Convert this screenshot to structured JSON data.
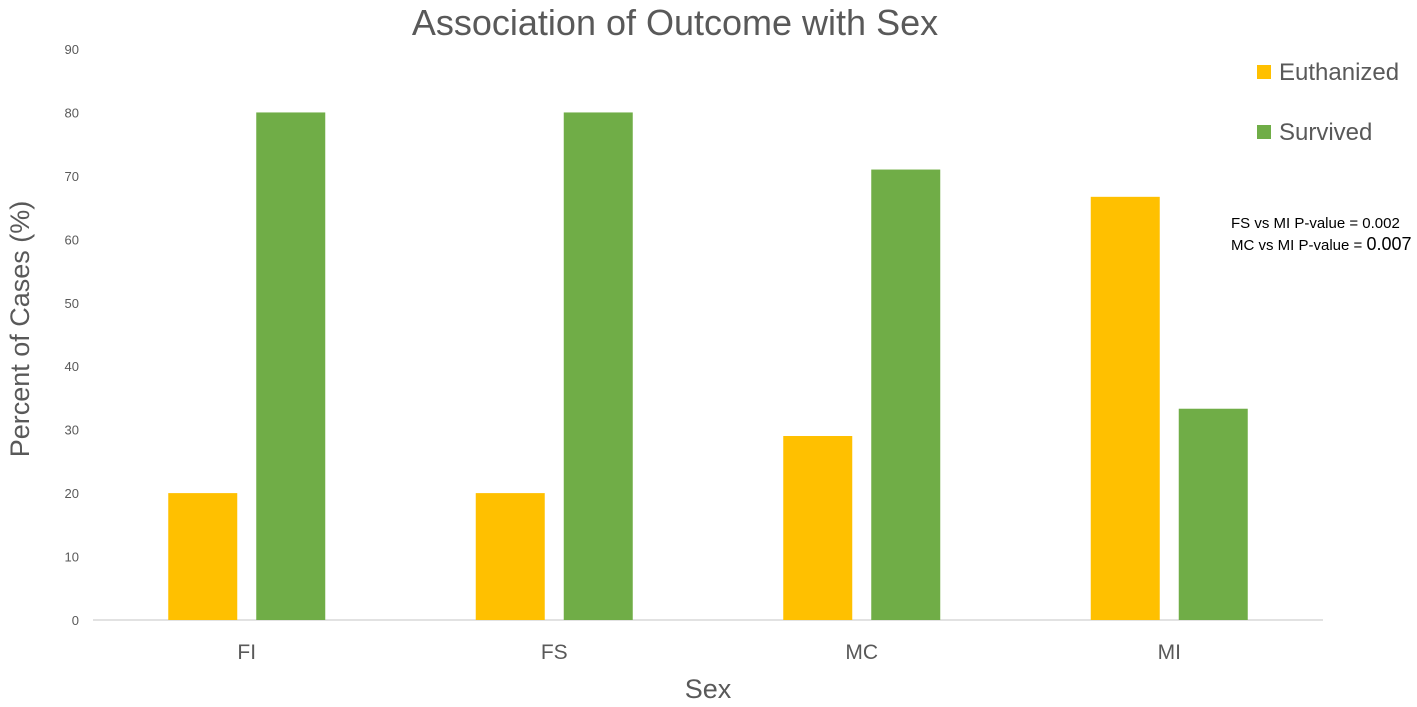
{
  "chart_data": {
    "type": "bar",
    "title": "Association of Outcome with Sex",
    "xlabel": "Sex",
    "ylabel": "Percent of Cases (%)",
    "categories": [
      "FI",
      "FS",
      "MC",
      "MI"
    ],
    "series": [
      {
        "name": "Euthanized",
        "color": "#FFC000",
        "values": [
          20,
          20,
          29,
          66.7
        ]
      },
      {
        "name": "Survived",
        "color": "#70AD47",
        "values": [
          80,
          80,
          71,
          33.3
        ]
      }
    ],
    "ylim": [
      0,
      90
    ],
    "yticks": [
      "0",
      "10",
      "20",
      "30",
      "40",
      "50",
      "60",
      "70",
      "80",
      "90"
    ],
    "grid": false,
    "legend_position": "top-right",
    "annotations": [
      {
        "prefix": "FS vs MI P-value = ",
        "value": "0.002"
      },
      {
        "prefix": "MC vs MI P-value = ",
        "value": "0.007"
      }
    ]
  }
}
